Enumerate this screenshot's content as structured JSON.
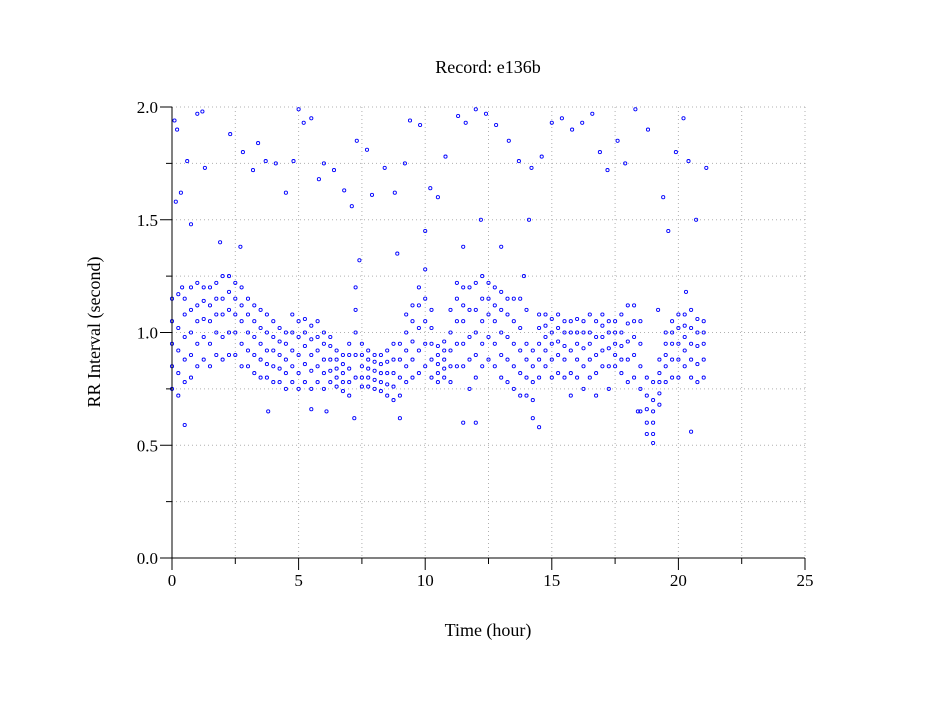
{
  "chart_data": {
    "type": "scatter",
    "title": "Record:  e136b",
    "xlabel": "Time (hour)",
    "ylabel": "RR Interval (second)",
    "xlim": [
      0,
      25
    ],
    "ylim": [
      0,
      2.0
    ],
    "xticks": [
      "0",
      "5",
      "10",
      "15",
      "20",
      "25"
    ],
    "yticks": [
      "0.0",
      "0.5",
      "1.0",
      "1.5",
      "2.0"
    ],
    "grid": true,
    "marker_color": "#0000ff",
    "band": [
      [
        0.0,
        [
          0.75,
          0.85,
          0.95,
          1.05,
          1.15
        ]
      ],
      [
        0.25,
        [
          0.72,
          0.82,
          0.92,
          1.02,
          1.17
        ]
      ],
      [
        0.5,
        [
          0.78,
          0.88,
          0.98,
          1.08,
          1.15
        ]
      ],
      [
        0.75,
        [
          0.8,
          0.9,
          1.0,
          1.1,
          1.2
        ]
      ],
      [
        1.0,
        [
          0.85,
          0.95,
          1.05,
          1.12,
          1.22
        ]
      ],
      [
        1.25,
        [
          0.88,
          0.98,
          1.06,
          1.14,
          1.2
        ]
      ],
      [
        1.5,
        [
          0.85,
          0.95,
          1.05,
          1.12,
          1.2
        ]
      ],
      [
        1.75,
        [
          0.9,
          1.0,
          1.08,
          1.15,
          1.22
        ]
      ],
      [
        2.0,
        [
          0.88,
          0.98,
          1.08,
          1.15,
          1.25
        ]
      ],
      [
        2.25,
        [
          0.9,
          1.0,
          1.1,
          1.18,
          1.25
        ]
      ],
      [
        2.5,
        [
          0.9,
          1.0,
          1.08,
          1.15,
          1.22
        ]
      ],
      [
        2.75,
        [
          0.85,
          0.95,
          1.05,
          1.12,
          1.2
        ]
      ],
      [
        3.0,
        [
          0.85,
          0.92,
          1.0,
          1.08,
          1.15
        ]
      ],
      [
        3.25,
        [
          0.82,
          0.9,
          0.98,
          1.05,
          1.12
        ]
      ],
      [
        3.5,
        [
          0.8,
          0.88,
          0.95,
          1.02,
          1.1
        ]
      ],
      [
        3.75,
        [
          0.8,
          0.86,
          0.92,
          1.0,
          1.08
        ]
      ],
      [
        4.0,
        [
          0.78,
          0.85,
          0.92,
          0.98,
          1.05
        ]
      ],
      [
        4.25,
        [
          0.78,
          0.84,
          0.9,
          0.96,
          1.02
        ]
      ],
      [
        4.5,
        [
          0.75,
          0.82,
          0.88,
          0.95,
          1.0
        ]
      ],
      [
        4.75,
        [
          0.78,
          0.85,
          0.92,
          1.0,
          1.08
        ]
      ],
      [
        5.0,
        [
          0.75,
          0.82,
          0.9,
          0.98,
          1.05
        ]
      ],
      [
        5.25,
        [
          0.78,
          0.86,
          0.94,
          1.0,
          1.06
        ]
      ],
      [
        5.5,
        [
          0.75,
          0.83,
          0.9,
          0.97,
          1.03
        ]
      ],
      [
        5.75,
        [
          0.78,
          0.85,
          0.92,
          0.98,
          1.05
        ]
      ],
      [
        6.0,
        [
          0.75,
          0.82,
          0.88,
          0.95,
          1.0
        ]
      ],
      [
        6.25,
        [
          0.78,
          0.83,
          0.88,
          0.94,
          0.98
        ]
      ],
      [
        6.5,
        [
          0.76,
          0.8,
          0.84,
          0.88,
          0.92
        ]
      ],
      [
        6.75,
        [
          0.74,
          0.78,
          0.82,
          0.86,
          0.9
        ]
      ],
      [
        7.0,
        [
          0.72,
          0.78,
          0.84,
          0.9,
          0.95
        ]
      ],
      [
        7.25,
        [
          0.8,
          0.9,
          1.0,
          1.1,
          1.2
        ]
      ],
      [
        7.5,
        [
          0.76,
          0.8,
          0.85,
          0.9,
          0.95
        ]
      ],
      [
        7.75,
        [
          0.76,
          0.8,
          0.84,
          0.88,
          0.92
        ]
      ],
      [
        8.0,
        [
          0.75,
          0.79,
          0.83,
          0.87,
          0.9
        ]
      ],
      [
        8.25,
        [
          0.74,
          0.78,
          0.82,
          0.86,
          0.9
        ]
      ],
      [
        8.5,
        [
          0.72,
          0.77,
          0.82,
          0.87,
          0.92
        ]
      ],
      [
        8.75,
        [
          0.7,
          0.76,
          0.82,
          0.88,
          0.95
        ]
      ],
      [
        9.0,
        [
          0.62,
          0.72,
          0.8,
          0.88,
          0.95
        ]
      ],
      [
        9.25,
        [
          0.78,
          0.85,
          0.92,
          1.0,
          1.08
        ]
      ],
      [
        9.5,
        [
          0.8,
          0.88,
          0.96,
          1.05,
          1.12
        ]
      ],
      [
        9.75,
        [
          0.82,
          0.92,
          1.02,
          1.12,
          1.2
        ]
      ],
      [
        10.0,
        [
          0.85,
          0.95,
          1.05,
          1.15,
          1.28
        ]
      ],
      [
        10.25,
        [
          0.8,
          0.88,
          0.95,
          1.02,
          1.1
        ]
      ],
      [
        10.5,
        [
          0.78,
          0.82,
          0.86,
          0.9,
          0.94
        ]
      ],
      [
        10.75,
        [
          0.8,
          0.84,
          0.88,
          0.92,
          0.96
        ]
      ],
      [
        11.0,
        [
          0.78,
          0.85,
          0.92,
          1.0,
          1.1
        ]
      ],
      [
        11.25,
        [
          0.85,
          0.95,
          1.05,
          1.15,
          1.22
        ]
      ],
      [
        11.5,
        [
          0.85,
          0.95,
          1.05,
          1.12,
          1.2
        ]
      ],
      [
        11.75,
        [
          0.75,
          0.88,
          0.98,
          1.1,
          1.2
        ]
      ],
      [
        12.0,
        [
          0.8,
          0.9,
          1.0,
          1.1,
          1.22
        ]
      ],
      [
        12.25,
        [
          0.85,
          0.95,
          1.05,
          1.15,
          1.25
        ]
      ],
      [
        12.5,
        [
          0.88,
          0.98,
          1.08,
          1.15,
          1.22
        ]
      ],
      [
        12.75,
        [
          0.85,
          0.95,
          1.05,
          1.12,
          1.2
        ]
      ],
      [
        13.0,
        [
          0.8,
          0.9,
          1.0,
          1.1,
          1.18
        ]
      ],
      [
        13.25,
        [
          0.78,
          0.88,
          0.98,
          1.08,
          1.15
        ]
      ],
      [
        13.5,
        [
          0.75,
          0.85,
          0.95,
          1.05,
          1.15
        ]
      ],
      [
        13.75,
        [
          0.72,
          0.82,
          0.92,
          1.02,
          1.15
        ]
      ],
      [
        14.0,
        [
          0.72,
          0.8,
          0.88,
          0.95,
          1.1
        ]
      ],
      [
        14.25,
        [
          0.62,
          0.7,
          0.78,
          0.85,
          0.92
        ]
      ],
      [
        14.5,
        [
          0.8,
          0.88,
          0.95,
          1.02,
          1.08
        ]
      ],
      [
        14.75,
        [
          0.85,
          0.92,
          0.98,
          1.03,
          1.08
        ]
      ],
      [
        15.0,
        [
          0.8,
          0.88,
          0.95,
          1.0,
          1.06
        ]
      ],
      [
        15.25,
        [
          0.82,
          0.9,
          0.96,
          1.02,
          1.08
        ]
      ],
      [
        15.5,
        [
          0.8,
          0.88,
          0.94,
          1.0,
          1.05
        ]
      ],
      [
        15.75,
        [
          0.72,
          0.82,
          0.92,
          1.0,
          1.05
        ]
      ],
      [
        16.0,
        [
          0.8,
          0.88,
          0.95,
          1.0,
          1.06
        ]
      ],
      [
        16.25,
        [
          0.75,
          0.85,
          0.93,
          1.0,
          1.05
        ]
      ],
      [
        16.5,
        [
          0.8,
          0.88,
          0.95,
          1.0,
          1.08
        ]
      ],
      [
        16.75,
        [
          0.72,
          0.82,
          0.9,
          0.98,
          1.05
        ]
      ],
      [
        17.0,
        [
          0.85,
          0.92,
          0.98,
          1.03,
          1.08
        ]
      ],
      [
        17.25,
        [
          0.75,
          0.85,
          0.93,
          1.0,
          1.05
        ]
      ],
      [
        17.5,
        [
          0.85,
          0.9,
          0.95,
          1.0,
          1.05
        ]
      ],
      [
        17.75,
        [
          0.82,
          0.88,
          0.94,
          1.0,
          1.08
        ]
      ],
      [
        18.0,
        [
          0.78,
          0.88,
          0.96,
          1.04,
          1.12
        ]
      ],
      [
        18.25,
        [
          0.8,
          0.9,
          0.98,
          1.05,
          1.12
        ]
      ],
      [
        18.5,
        [
          0.65,
          0.75,
          0.85,
          0.95,
          1.05
        ]
      ],
      [
        18.75,
        [
          0.55,
          0.6,
          0.66,
          0.72,
          0.8
        ]
      ],
      [
        19.0,
        [
          0.55,
          0.6,
          0.65,
          0.7,
          0.78
        ]
      ],
      [
        19.25,
        [
          0.68,
          0.73,
          0.78,
          0.82,
          0.88
        ]
      ],
      [
        19.5,
        [
          0.78,
          0.85,
          0.9,
          0.95,
          1.0
        ]
      ],
      [
        19.75,
        [
          0.8,
          0.88,
          0.95,
          1.0,
          1.05
        ]
      ],
      [
        20.0,
        [
          0.8,
          0.88,
          0.95,
          1.02,
          1.08
        ]
      ],
      [
        20.25,
        [
          0.85,
          0.92,
          0.98,
          1.03,
          1.08
        ]
      ],
      [
        20.5,
        [
          0.8,
          0.88,
          0.95,
          1.02,
          1.1
        ]
      ],
      [
        20.75,
        [
          0.78,
          0.86,
          0.94,
          1.0,
          1.06
        ]
      ],
      [
        21.0,
        [
          0.8,
          0.88,
          0.95,
          1.0,
          1.05
        ]
      ]
    ],
    "outliers": [
      [
        0.1,
        1.94
      ],
      [
        0.2,
        1.9
      ],
      [
        0.15,
        1.58
      ],
      [
        0.35,
        1.62
      ],
      [
        0.6,
        1.76
      ],
      [
        0.75,
        1.48
      ],
      [
        1.0,
        1.97
      ],
      [
        1.2,
        1.98
      ],
      [
        1.3,
        1.73
      ],
      [
        2.3,
        1.88
      ],
      [
        2.8,
        1.8
      ],
      [
        3.2,
        1.72
      ],
      [
        3.4,
        1.84
      ],
      [
        3.7,
        1.76
      ],
      [
        4.1,
        1.75
      ],
      [
        4.5,
        1.62
      ],
      [
        4.8,
        1.76
      ],
      [
        5.0,
        1.99
      ],
      [
        5.2,
        1.93
      ],
      [
        5.5,
        1.95
      ],
      [
        5.8,
        1.68
      ],
      [
        6.0,
        1.75
      ],
      [
        6.4,
        1.72
      ],
      [
        6.8,
        1.63
      ],
      [
        7.1,
        1.56
      ],
      [
        7.3,
        1.85
      ],
      [
        7.7,
        1.81
      ],
      [
        7.9,
        1.61
      ],
      [
        8.4,
        1.73
      ],
      [
        8.8,
        1.62
      ],
      [
        9.2,
        1.75
      ],
      [
        9.4,
        1.94
      ],
      [
        9.8,
        1.92
      ],
      [
        10.2,
        1.64
      ],
      [
        10.5,
        1.6
      ],
      [
        10.8,
        1.78
      ],
      [
        11.3,
        1.96
      ],
      [
        11.6,
        1.93
      ],
      [
        12.0,
        1.99
      ],
      [
        12.4,
        1.97
      ],
      [
        12.8,
        1.92
      ],
      [
        13.3,
        1.85
      ],
      [
        13.7,
        1.76
      ],
      [
        14.2,
        1.73
      ],
      [
        14.6,
        1.78
      ],
      [
        15.0,
        1.93
      ],
      [
        15.4,
        1.95
      ],
      [
        15.8,
        1.9
      ],
      [
        16.2,
        1.93
      ],
      [
        16.6,
        1.97
      ],
      [
        16.9,
        1.8
      ],
      [
        17.2,
        1.72
      ],
      [
        17.6,
        1.85
      ],
      [
        17.9,
        1.75
      ],
      [
        18.3,
        1.99
      ],
      [
        18.8,
        1.9
      ],
      [
        19.4,
        1.6
      ],
      [
        19.6,
        1.45
      ],
      [
        19.9,
        1.8
      ],
      [
        20.2,
        1.95
      ],
      [
        20.4,
        1.76
      ],
      [
        20.7,
        1.5
      ],
      [
        21.1,
        1.73
      ],
      [
        0.4,
        1.2
      ],
      [
        1.9,
        1.4
      ],
      [
        2.7,
        1.38
      ],
      [
        7.4,
        1.32
      ],
      [
        8.9,
        1.35
      ],
      [
        10.0,
        1.45
      ],
      [
        11.5,
        1.38
      ],
      [
        12.2,
        1.5
      ],
      [
        13.0,
        1.38
      ],
      [
        13.9,
        1.25
      ],
      [
        14.1,
        1.5
      ],
      [
        19.2,
        1.1
      ],
      [
        20.3,
        1.18
      ],
      [
        0.5,
        0.59
      ],
      [
        3.8,
        0.65
      ],
      [
        5.5,
        0.66
      ],
      [
        6.1,
        0.65
      ],
      [
        7.2,
        0.62
      ],
      [
        11.5,
        0.6
      ],
      [
        12.0,
        0.6
      ],
      [
        14.5,
        0.58
      ],
      [
        18.4,
        0.65
      ],
      [
        20.5,
        0.56
      ],
      [
        19.0,
        0.51
      ]
    ]
  }
}
